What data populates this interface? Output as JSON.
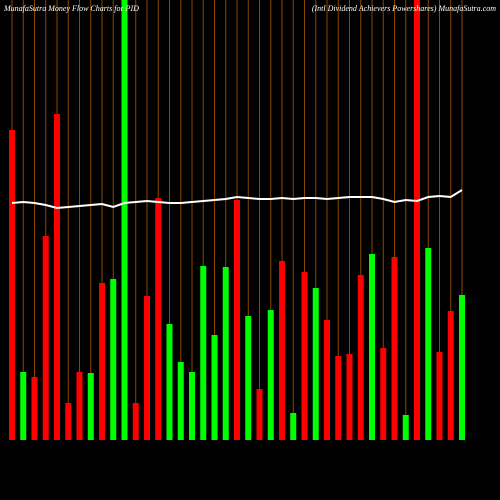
{
  "chart_data": {
    "type": "bar",
    "title": "MunafaSutra  Money Flow  Charts for PID",
    "subtitle": "(Intl Dividend Achievers Powershares) MunafaSutra.com",
    "categories": [
      null,
      null,
      null,
      null,
      null,
      null,
      null,
      null,
      null,
      null,
      null,
      null,
      null,
      null,
      null,
      null,
      null,
      null,
      null,
      null,
      null,
      null,
      null,
      null,
      null,
      null,
      null,
      null,
      null,
      null,
      null,
      null,
      null,
      null,
      null,
      null,
      null,
      null,
      null,
      null,
      null
    ],
    "values": [
      310,
      68,
      63,
      204,
      326,
      37,
      68,
      67,
      157,
      161,
      440,
      37,
      144,
      242,
      116,
      78,
      68,
      174,
      105,
      173,
      240,
      124,
      51,
      130,
      179,
      27,
      168,
      152,
      120,
      84,
      86,
      165,
      186,
      92,
      183,
      25,
      440,
      192,
      88,
      129,
      145
    ],
    "colors": [
      "#ff0000",
      "#00ff00",
      "#ff0000",
      "#ff0000",
      "#ff0000",
      "#ff0000",
      "#ff0000",
      "#00ff00",
      "#ff0000",
      "#00ff00",
      "#00ff00",
      "#ff0000",
      "#ff0000",
      "#ff0000",
      "#00ff00",
      "#00ff00",
      "#00ff00",
      "#00ff00",
      "#00ff00",
      "#00ff00",
      "#ff0000",
      "#00ff00",
      "#ff0000",
      "#00ff00",
      "#ff0000",
      "#00ff00",
      "#ff0000",
      "#00ff00",
      "#ff0000",
      "#ff0000",
      "#ff0000",
      "#ff0000",
      "#00ff00",
      "#ff0000",
      "#ff0000",
      "#00ff00",
      "#ff0000",
      "#00ff00",
      "#ff0000",
      "#ff0000",
      "#00ff00"
    ],
    "line_values": [
      237,
      238,
      237,
      235,
      232,
      233,
      234,
      235,
      236,
      233,
      237,
      238,
      239,
      238,
      237,
      237,
      238,
      239,
      240,
      241,
      243,
      242,
      241,
      241,
      242,
      241,
      242,
      242,
      241,
      242,
      243,
      243,
      243,
      241,
      238,
      240,
      239,
      243,
      244,
      243,
      250
    ],
    "line_color": "#ffffff",
    "grid_color": "#8b4500",
    "ylim": [
      0,
      440
    ]
  }
}
